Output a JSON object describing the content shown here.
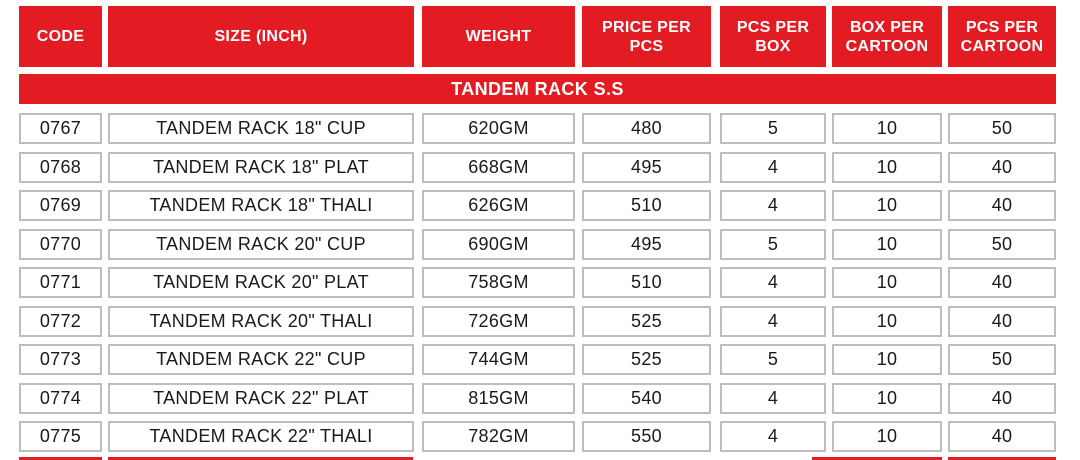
{
  "table": {
    "headers": [
      "CODE",
      "SIZE (INCH)",
      "WEIGHT",
      "PRICE PER PCS",
      "PCS PER BOX",
      "BOX PER CARTOON",
      "PCS PER CARTOON"
    ],
    "section_title": "TANDEM RACK S.S",
    "rows": [
      [
        "0767",
        "TANDEM RACK 18\" CUP",
        "620GM",
        "480",
        "5",
        "10",
        "50"
      ],
      [
        "0768",
        "TANDEM RACK 18\" PLAT",
        "668GM",
        "495",
        "4",
        "10",
        "40"
      ],
      [
        "0769",
        "TANDEM RACK 18\" THALI",
        "626GM",
        "510",
        "4",
        "10",
        "40"
      ],
      [
        "0770",
        "TANDEM RACK 20\" CUP",
        "690GM",
        "495",
        "5",
        "10",
        "50"
      ],
      [
        "0771",
        "TANDEM RACK 20\" PLAT",
        "758GM",
        "510",
        "4",
        "10",
        "40"
      ],
      [
        "0772",
        "TANDEM RACK 20\" THALI",
        "726GM",
        "525",
        "4",
        "10",
        "40"
      ],
      [
        "0773",
        "TANDEM RACK 22\" CUP",
        "744GM",
        "525",
        "5",
        "10",
        "50"
      ],
      [
        "0774",
        "TANDEM RACK 22\" PLAT",
        "815GM",
        "540",
        "4",
        "10",
        "40"
      ],
      [
        "0775",
        "TANDEM RACK 22\" THALI",
        "782GM",
        "550",
        "4",
        "10",
        "40"
      ]
    ]
  },
  "colors": {
    "header_background": "#e31b23",
    "header_text": "#ffffff",
    "cell_border": "#bdbdbd",
    "cell_text": "#1a1a1a"
  }
}
